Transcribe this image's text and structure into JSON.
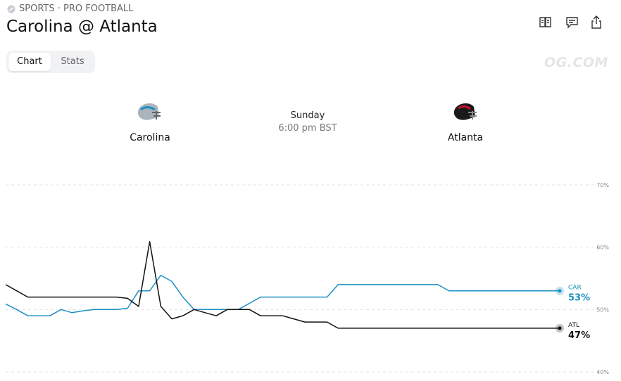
{
  "header": {
    "breadcrumb": "SPORTS · PRO FOOTBALL",
    "title": "Carolina @ Atlanta"
  },
  "tabs": [
    "Chart",
    "Stats"
  ],
  "watermark": "OG.COM",
  "game": {
    "home": "Carolina",
    "day": "Sunday",
    "time": "6:00 pm BST",
    "away": "Atlanta"
  },
  "chart_data": {
    "type": "line",
    "ylim": [
      40,
      70
    ],
    "yticks": [
      {
        "value": 40,
        "label": "40%"
      },
      {
        "value": 50,
        "label": "50%"
      },
      {
        "value": 60,
        "label": "60%"
      },
      {
        "value": 70,
        "label": "70%"
      }
    ],
    "grid": true,
    "series": [
      {
        "name": "CAR",
        "color": "#1b8fc2",
        "values": [
          50.9,
          50,
          49,
          49,
          49,
          50,
          49.5,
          49.8,
          50,
          50,
          50,
          50.2,
          53,
          53,
          55.5,
          54.5,
          52,
          50,
          50,
          50,
          50,
          50,
          51,
          52,
          52,
          52,
          52,
          52,
          52,
          52,
          54,
          54,
          54,
          54,
          54,
          54,
          54,
          54,
          54,
          54,
          53,
          53,
          53,
          53,
          53,
          53,
          53,
          53,
          53,
          53,
          53
        ],
        "value_labels": [
          null,
          null,
          null,
          null,
          null,
          null,
          null,
          null,
          null,
          null,
          null,
          null,
          null,
          null,
          null,
          null,
          null,
          null,
          null,
          null,
          null,
          null,
          null,
          null,
          null,
          null,
          null,
          null,
          null,
          null,
          null,
          null,
          null,
          null,
          null,
          null,
          null,
          null,
          null,
          null,
          null,
          null,
          null,
          null,
          null,
          null,
          null,
          null,
          null,
          null,
          "53%"
        ]
      },
      {
        "name": "ATL",
        "color": "#111111",
        "values": [
          54,
          53,
          52,
          52,
          52,
          52,
          52,
          52,
          52,
          52,
          52,
          51.8,
          50.5,
          60.9,
          50.5,
          48.5,
          49,
          50,
          49.5,
          49,
          50,
          50,
          50,
          49,
          49,
          49,
          48.5,
          48,
          48,
          48,
          47,
          47,
          47,
          47,
          47,
          47,
          47,
          47,
          47,
          47,
          47,
          47,
          47,
          47,
          47,
          47,
          47,
          47,
          47,
          47,
          47
        ],
        "value_labels": [
          null,
          null,
          null,
          null,
          null,
          null,
          null,
          null,
          null,
          null,
          null,
          null,
          null,
          null,
          null,
          null,
          null,
          null,
          null,
          null,
          null,
          null,
          null,
          null,
          null,
          null,
          null,
          null,
          null,
          null,
          null,
          null,
          null,
          null,
          null,
          null,
          null,
          null,
          null,
          null,
          null,
          null,
          null,
          null,
          null,
          null,
          null,
          null,
          null,
          null,
          "47%"
        ]
      }
    ]
  }
}
